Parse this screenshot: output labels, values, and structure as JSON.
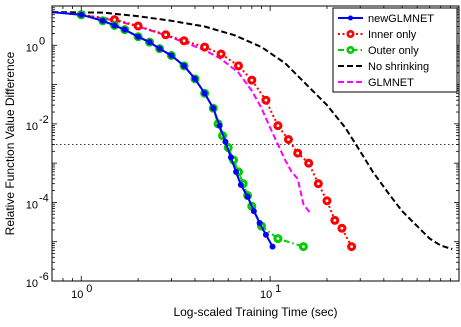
{
  "chart_data": {
    "type": "line",
    "title": "",
    "xlabel": "Log-scaled Training Time (sec)",
    "ylabel": "Relative Function Value Difference",
    "xscale": "log",
    "yscale": "log",
    "xlim": [
      0.7,
      100
    ],
    "ylim": [
      1e-06,
      10
    ],
    "x_ticks": [
      {
        "value": 1,
        "label": "10",
        "exp": "0"
      },
      {
        "value": 10,
        "label": "10",
        "exp": "1"
      }
    ],
    "y_ticks": [
      {
        "value": 1e-06,
        "label": "10",
        "exp": "-6"
      },
      {
        "value": 0.0001,
        "label": "10",
        "exp": "-4"
      },
      {
        "value": 0.01,
        "label": "10",
        "exp": "-2"
      },
      {
        "value": 1,
        "label": "10",
        "exp": "0"
      }
    ],
    "reference_line": {
      "y": 0.003,
      "style": "dotted"
    },
    "legend_position": "top-right",
    "grid": false,
    "series": [
      {
        "name": "newGLMNET",
        "color": "#0000ff",
        "dash": "solid",
        "marker": "dot",
        "points": [
          [
            0.7,
            7.0
          ],
          [
            1.0,
            6.0
          ],
          [
            1.3,
            4.2
          ],
          [
            1.5,
            3.2
          ],
          [
            1.7,
            2.5
          ],
          [
            2.0,
            1.65
          ],
          [
            2.3,
            1.2
          ],
          [
            2.6,
            0.82
          ],
          [
            3.0,
            0.55
          ],
          [
            3.5,
            0.3
          ],
          [
            4.0,
            0.14
          ],
          [
            4.5,
            0.06
          ],
          [
            5.0,
            0.025
          ],
          [
            5.4,
            0.009
          ],
          [
            5.8,
            0.0035
          ],
          [
            6.2,
            0.0014
          ],
          [
            6.6,
            0.0006
          ],
          [
            7.0,
            0.00028
          ],
          [
            7.6,
            0.00014
          ],
          [
            8.2,
            6e-05
          ],
          [
            8.8,
            3e-05
          ],
          [
            9.5,
            1.5e-05
          ],
          [
            10.3,
            7.5e-06
          ]
        ]
      },
      {
        "name": "Inner only",
        "color": "#ff0000",
        "dash": "dotted",
        "marker": "circle",
        "points": [
          [
            0.7,
            7.0
          ],
          [
            1.0,
            6.0
          ],
          [
            1.5,
            4.5
          ],
          [
            2.0,
            3.1
          ],
          [
            2.8,
            1.85
          ],
          [
            3.5,
            1.3
          ],
          [
            4.5,
            0.9
          ],
          [
            5.5,
            0.6
          ],
          [
            6.8,
            0.3
          ],
          [
            8.0,
            0.13
          ],
          [
            9.5,
            0.04
          ],
          [
            11.0,
            0.009
          ],
          [
            12.5,
            0.004
          ],
          [
            14.0,
            0.0018
          ],
          [
            16.0,
            0.001
          ],
          [
            18.0,
            0.0003
          ],
          [
            20.0,
            0.00011
          ],
          [
            22.0,
            3.5e-05
          ],
          [
            24.0,
            2.2e-05
          ],
          [
            27.0,
            7.5e-06
          ]
        ]
      },
      {
        "name": "Outer only",
        "color": "#00cc00",
        "dash": "dashdot",
        "marker": "circle",
        "points": [
          [
            0.7,
            7.0
          ],
          [
            1.0,
            6.0
          ],
          [
            1.3,
            4.2
          ],
          [
            1.5,
            3.2
          ],
          [
            1.7,
            2.5
          ],
          [
            2.0,
            1.65
          ],
          [
            2.3,
            1.2
          ],
          [
            2.6,
            0.82
          ],
          [
            3.0,
            0.55
          ],
          [
            3.5,
            0.3
          ],
          [
            4.0,
            0.14
          ],
          [
            4.5,
            0.06
          ],
          [
            5.0,
            0.025
          ],
          [
            5.3,
            0.01
          ],
          [
            5.6,
            0.005
          ],
          [
            6.0,
            0.0025
          ],
          [
            6.4,
            0.0012
          ],
          [
            6.8,
            0.0006
          ],
          [
            7.2,
            0.0003
          ],
          [
            7.6,
            0.00015
          ],
          [
            8.0,
            8e-05
          ],
          [
            9.0,
            2.5e-05
          ],
          [
            11.0,
            1.2e-05
          ],
          [
            15.0,
            7.5e-06
          ]
        ]
      },
      {
        "name": "No shrinking",
        "color": "#000000",
        "dash": "dashed",
        "marker": "none",
        "points": [
          [
            0.7,
            7.0
          ],
          [
            1.3,
            6.8
          ],
          [
            2.0,
            5.5
          ],
          [
            3.0,
            4.2
          ],
          [
            4.5,
            3.0
          ],
          [
            6.5,
            1.8
          ],
          [
            9.0,
            0.9
          ],
          [
            12.0,
            0.35
          ],
          [
            15.0,
            0.12
          ],
          [
            20.0,
            0.03
          ],
          [
            25.0,
            0.008
          ],
          [
            30.0,
            0.002
          ],
          [
            35.0,
            0.0006
          ],
          [
            42.0,
            0.00018
          ],
          [
            50.0,
            6e-05
          ],
          [
            60.0,
            2.5e-05
          ],
          [
            70.0,
            1.2e-05
          ],
          [
            80.0,
            8e-06
          ],
          [
            92.0,
            6.5e-06
          ]
        ]
      },
      {
        "name": "GLMNET",
        "color": "#ff00ff",
        "dash": "dashed",
        "marker": "none",
        "points": [
          [
            0.7,
            7.0
          ],
          [
            1.0,
            6.0
          ],
          [
            1.5,
            4.3
          ],
          [
            2.0,
            3.0
          ],
          [
            2.8,
            1.8
          ],
          [
            3.5,
            1.2
          ],
          [
            4.5,
            0.75
          ],
          [
            5.5,
            0.45
          ],
          [
            6.8,
            0.2
          ],
          [
            8.0,
            0.07
          ],
          [
            9.0,
            0.025
          ],
          [
            10.0,
            0.008
          ],
          [
            11.0,
            0.003
          ],
          [
            12.0,
            0.0012
          ],
          [
            13.0,
            0.0006
          ],
          [
            14.0,
            0.0004
          ],
          [
            15.0,
            9e-05
          ],
          [
            16.5,
            5e-05
          ]
        ]
      }
    ]
  }
}
